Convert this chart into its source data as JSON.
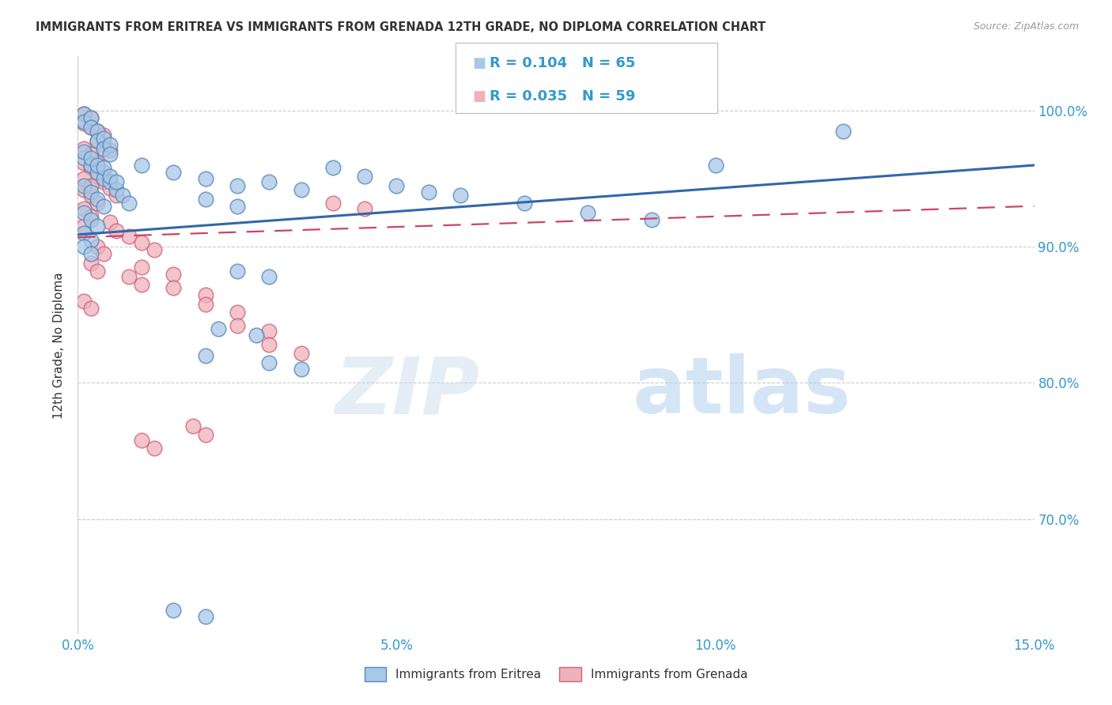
{
  "title": "IMMIGRANTS FROM ERITREA VS IMMIGRANTS FROM GRENADA 12TH GRADE, NO DIPLOMA CORRELATION CHART",
  "source": "Source: ZipAtlas.com",
  "ylabel": "12th Grade, No Diploma",
  "ytick_labels": [
    "100.0%",
    "90.0%",
    "80.0%",
    "70.0%"
  ],
  "ytick_values": [
    1.0,
    0.9,
    0.8,
    0.7
  ],
  "xmin": 0.0,
  "xmax": 0.15,
  "ymin": 0.615,
  "ymax": 1.04,
  "legend_eritrea_R": "0.104",
  "legend_eritrea_N": "65",
  "legend_grenada_R": "0.035",
  "legend_grenada_N": "59",
  "legend_label_eritrea": "Immigrants from Eritrea",
  "legend_label_grenada": "Immigrants from Grenada",
  "color_eritrea": "#a8c8e8",
  "color_eritrea_edge": "#5588bb",
  "color_eritrea_line": "#3366aa",
  "color_grenada": "#f0b0bc",
  "color_grenada_edge": "#cc6677",
  "color_grenada_line": "#cc4466",
  "color_text_blue": "#3399cc",
  "color_text_title": "#333333",
  "trendline_eritrea": [
    0.0,
    0.909,
    0.15,
    0.96
  ],
  "trendline_grenada": [
    0.0,
    0.907,
    0.15,
    0.93
  ],
  "scatter_eritrea_x": [
    0.001,
    0.001,
    0.002,
    0.002,
    0.003,
    0.003,
    0.004,
    0.004,
    0.005,
    0.005,
    0.001,
    0.002,
    0.003,
    0.004,
    0.005,
    0.006,
    0.007,
    0.008,
    0.001,
    0.002,
    0.003,
    0.004,
    0.005,
    0.006,
    0.001,
    0.002,
    0.003,
    0.004,
    0.001,
    0.002,
    0.003,
    0.001,
    0.002,
    0.001,
    0.002,
    0.01,
    0.015,
    0.02,
    0.025,
    0.03,
    0.035,
    0.02,
    0.025,
    0.04,
    0.045,
    0.05,
    0.055,
    0.06,
    0.07,
    0.08,
    0.09,
    0.1,
    0.12,
    0.025,
    0.03,
    0.02,
    0.03,
    0.035,
    0.022,
    0.028,
    0.015,
    0.02
  ],
  "scatter_eritrea_y": [
    0.998,
    0.992,
    0.995,
    0.988,
    0.985,
    0.978,
    0.98,
    0.972,
    0.975,
    0.968,
    0.965,
    0.96,
    0.955,
    0.95,
    0.948,
    0.942,
    0.938,
    0.932,
    0.97,
    0.965,
    0.96,
    0.958,
    0.952,
    0.948,
    0.945,
    0.94,
    0.935,
    0.93,
    0.925,
    0.92,
    0.915,
    0.91,
    0.905,
    0.9,
    0.895,
    0.96,
    0.955,
    0.95,
    0.945,
    0.948,
    0.942,
    0.935,
    0.93,
    0.958,
    0.952,
    0.945,
    0.94,
    0.938,
    0.932,
    0.925,
    0.92,
    0.96,
    0.985,
    0.882,
    0.878,
    0.82,
    0.815,
    0.81,
    0.84,
    0.835,
    0.633,
    0.628
  ],
  "scatter_grenada_x": [
    0.001,
    0.001,
    0.002,
    0.002,
    0.003,
    0.003,
    0.004,
    0.004,
    0.005,
    0.001,
    0.002,
    0.003,
    0.004,
    0.005,
    0.006,
    0.001,
    0.002,
    0.003,
    0.004,
    0.001,
    0.002,
    0.003,
    0.001,
    0.002,
    0.001,
    0.002,
    0.001,
    0.008,
    0.01,
    0.012,
    0.01,
    0.015,
    0.015,
    0.02,
    0.02,
    0.025,
    0.025,
    0.03,
    0.03,
    0.035,
    0.008,
    0.01,
    0.005,
    0.006,
    0.003,
    0.004,
    0.002,
    0.003,
    0.001,
    0.002,
    0.04,
    0.045,
    0.01,
    0.012,
    0.018,
    0.02
  ],
  "scatter_grenada_y": [
    0.998,
    0.991,
    0.995,
    0.988,
    0.985,
    0.978,
    0.982,
    0.975,
    0.971,
    0.962,
    0.958,
    0.952,
    0.948,
    0.943,
    0.938,
    0.972,
    0.968,
    0.962,
    0.955,
    0.942,
    0.938,
    0.932,
    0.95,
    0.945,
    0.928,
    0.922,
    0.915,
    0.908,
    0.903,
    0.898,
    0.885,
    0.88,
    0.87,
    0.865,
    0.858,
    0.852,
    0.842,
    0.838,
    0.828,
    0.822,
    0.878,
    0.872,
    0.918,
    0.912,
    0.9,
    0.895,
    0.888,
    0.882,
    0.86,
    0.855,
    0.932,
    0.928,
    0.758,
    0.752,
    0.768,
    0.762
  ],
  "watermark_zip": "ZIP",
  "watermark_atlas": "atlas",
  "background_color": "#ffffff",
  "grid_color": "#cccccc"
}
